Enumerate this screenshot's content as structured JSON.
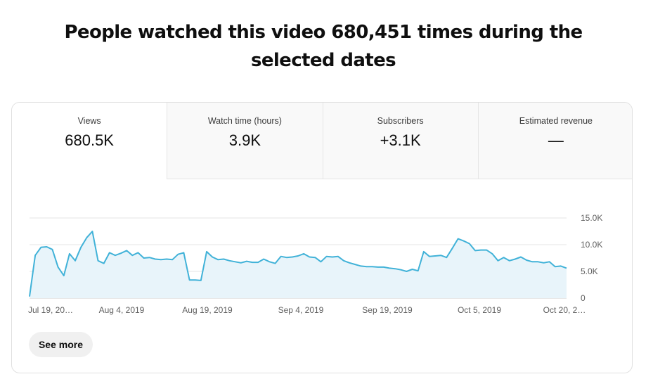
{
  "headline": "People watched this video 680,451 times during the selected dates",
  "metrics": [
    {
      "label": "Views",
      "value": "680.5K"
    },
    {
      "label": "Watch time (hours)",
      "value": "3.9K"
    },
    {
      "label": "Subscribers",
      "value": "+3.1K"
    },
    {
      "label": "Estimated revenue",
      "value": "—"
    }
  ],
  "see_more_label": "See more",
  "colors": {
    "line": "#41b2d8",
    "fill": "#e8f4fa",
    "grid": "#e6e6e6"
  },
  "chart_data": {
    "type": "area",
    "series": [
      {
        "values": [
          300,
          8000,
          9500,
          9600,
          9100,
          5800,
          4200,
          8300,
          7000,
          9500,
          11300,
          12500,
          7000,
          6500,
          8500,
          8000,
          8400,
          8900,
          8000,
          8500,
          7500,
          7600,
          7300,
          7200,
          7300,
          7200,
          8200,
          8500,
          3400,
          3400,
          3300,
          8700,
          7700,
          7200,
          7300,
          7000,
          6800,
          6600,
          6900,
          6700,
          6700,
          7300,
          6800,
          6500,
          7800,
          7600,
          7700,
          7900,
          8300,
          7700,
          7600,
          6800,
          7800,
          7700,
          7800,
          7000,
          6600,
          6300,
          6000,
          5900,
          5900,
          5800,
          5800,
          5600,
          5500,
          5300,
          5000,
          5400,
          5100,
          8700,
          7800,
          7900,
          8000,
          7600,
          9300,
          11100,
          10700,
          10200,
          8900,
          9000,
          9000,
          8300,
          7000,
          7600,
          7000,
          7300,
          7700,
          7100,
          6800,
          6800,
          6600,
          6800,
          5900,
          6000,
          5600
        ]
      }
    ],
    "x_tick_labels": [
      "Jul 19, 20…",
      "Aug 4, 2019",
      "Aug 19, 2019",
      "Sep 4, 2019",
      "Sep 19, 2019",
      "Oct 5, 2019",
      "Oct 20, 2…"
    ],
    "y_tick_labels": [
      "0",
      "5.0K",
      "10.0K",
      "15.0K"
    ],
    "y_ticks": [
      0,
      5000,
      10000,
      15000
    ],
    "ylim": [
      0,
      15000
    ],
    "grid": true
  }
}
